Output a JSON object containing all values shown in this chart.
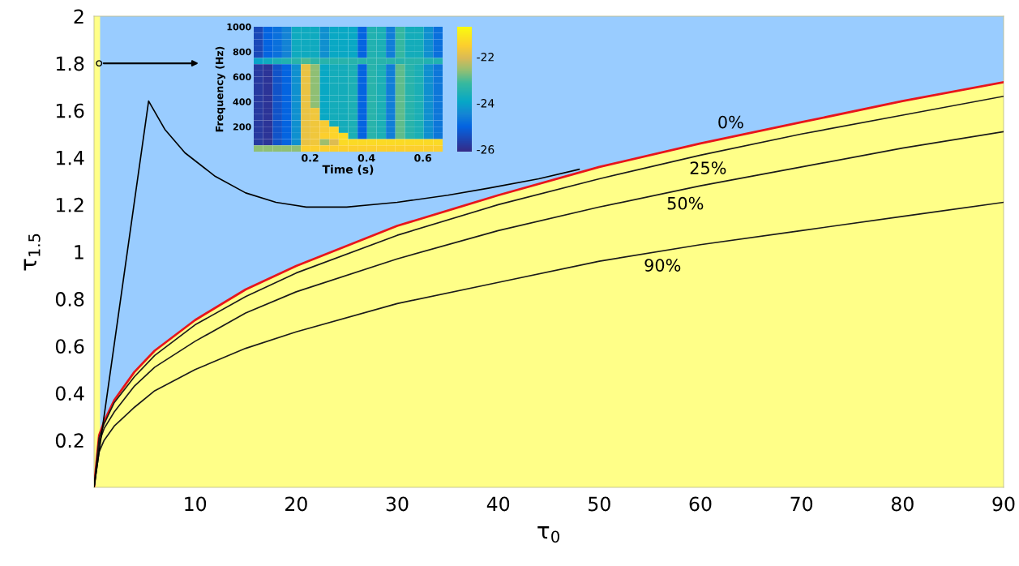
{
  "chart_data": [
    {
      "type": "area",
      "xlabel": "τ$_{0}$",
      "ylabel": "τ$_{1.5}$",
      "xlim": [
        0,
        90
      ],
      "ylim": [
        0,
        2
      ],
      "xticks": [
        10,
        20,
        30,
        40,
        50,
        60,
        70,
        80,
        90
      ],
      "yticks": [
        0.2,
        0.4,
        0.6,
        0.8,
        1,
        1.2,
        1.4,
        1.6,
        1.8,
        2
      ],
      "grid": false,
      "x": [
        0,
        0.5,
        1,
        2,
        4,
        6,
        10,
        15,
        20,
        30,
        40,
        50,
        60,
        70,
        80,
        90
      ],
      "bands": [
        {
          "axis": "x",
          "from": 0,
          "to": 0.6,
          "color": "#ffff88"
        }
      ],
      "series": [
        {
          "type": "area",
          "color": "#99ccff",
          "values": [
            2,
            2,
            2,
            2,
            2,
            2,
            2,
            2,
            2,
            2,
            2,
            2,
            2,
            2,
            2,
            2
          ]
        },
        {
          "type": "line",
          "name": "0%",
          "color": "#e8141b",
          "values": [
            0,
            0.22,
            0.28,
            0.37,
            0.49,
            0.58,
            0.71,
            0.84,
            0.94,
            1.11,
            1.24,
            1.36,
            1.46,
            1.55,
            1.64,
            1.72
          ]
        },
        {
          "type": "line",
          "name": "25%",
          "color": "#1a1a1a",
          "values": [
            0,
            0.21,
            0.27,
            0.36,
            0.47,
            0.56,
            0.69,
            0.81,
            0.91,
            1.07,
            1.2,
            1.31,
            1.41,
            1.5,
            1.58,
            1.66
          ]
        },
        {
          "type": "line",
          "name": "50%",
          "color": "#1a1a1a",
          "values": [
            0,
            0.19,
            0.25,
            0.32,
            0.43,
            0.51,
            0.62,
            0.74,
            0.83,
            0.97,
            1.09,
            1.19,
            1.28,
            1.36,
            1.44,
            1.51
          ]
        },
        {
          "type": "line",
          "name": "90%",
          "color": "#1a1a1a",
          "values": [
            0,
            0.15,
            0.2,
            0.26,
            0.34,
            0.41,
            0.5,
            0.59,
            0.66,
            0.78,
            0.87,
            0.96,
            1.03,
            1.09,
            1.15,
            1.21
          ]
        },
        {
          "type": "line",
          "color": "#000000",
          "x": [
            0,
            5.4,
            7,
            9,
            12,
            15,
            18,
            21,
            25,
            30,
            35,
            39,
            44,
            48
          ],
          "values": [
            0,
            1.64,
            1.52,
            1.42,
            1.32,
            1.25,
            1.21,
            1.19,
            1.19,
            1.21,
            1.24,
            1.27,
            1.31,
            1.35
          ]
        },
        {
          "type": "scatter",
          "color": "#000000",
          "marker": "circle",
          "x": [
            0.5
          ],
          "values": [
            1.8
          ]
        }
      ]
    },
    {
      "type": "heatmap",
      "xlabel": "Time (s)",
      "ylabel": "Frequency (Hz)",
      "xlim": [
        0,
        0.67
      ],
      "ylim": [
        0,
        1000
      ],
      "xticks": [
        0.2,
        0.4,
        0.6
      ],
      "yticks": [
        200,
        400,
        600,
        800,
        1000
      ],
      "clim": [
        -26.1,
        -20.7
      ],
      "cticks": [
        -22,
        -24,
        -26
      ],
      "x": [
        0.017,
        0.05,
        0.084,
        0.117,
        0.151,
        0.184,
        0.218,
        0.251,
        0.285,
        0.318,
        0.352,
        0.385,
        0.419,
        0.452,
        0.486,
        0.519,
        0.553,
        0.586,
        0.62,
        0.653
      ],
      "cells": [
        [
          -25.5,
          -25.0,
          -24.8,
          -24.5,
          -23.8,
          -23.8,
          -23.8,
          -24.3,
          -23.9,
          -23.9,
          -23.9,
          -25.0,
          -23.5,
          -23.6,
          -24.6,
          -23.2,
          -23.7,
          -23.7,
          -24.3,
          -24.8
        ],
        [
          -25.5,
          -25.0,
          -24.8,
          -24.5,
          -23.8,
          -23.8,
          -23.8,
          -24.3,
          -23.9,
          -23.9,
          -23.9,
          -25.0,
          -23.5,
          -23.6,
          -24.6,
          -23.2,
          -23.7,
          -23.7,
          -24.3,
          -24.8
        ],
        [
          -25.5,
          -25.0,
          -24.8,
          -24.5,
          -23.8,
          -23.8,
          -23.8,
          -24.3,
          -23.9,
          -23.9,
          -23.9,
          -25.0,
          -23.5,
          -23.6,
          -24.6,
          -23.2,
          -23.7,
          -23.7,
          -24.3,
          -24.8
        ],
        [
          -25.5,
          -25.0,
          -24.8,
          -24.5,
          -23.8,
          -23.8,
          -23.8,
          -24.3,
          -23.9,
          -23.9,
          -23.9,
          -25.0,
          -23.5,
          -23.6,
          -24.6,
          -23.2,
          -23.7,
          -23.7,
          -24.3,
          -24.8
        ],
        [
          -25.5,
          -25.0,
          -24.8,
          -24.5,
          -23.8,
          -23.8,
          -23.8,
          -24.3,
          -23.9,
          -23.9,
          -23.9,
          -25.0,
          -23.5,
          -23.6,
          -24.6,
          -23.2,
          -23.7,
          -23.7,
          -24.3,
          -24.8
        ],
        [
          -24.0,
          -23.8,
          -23.6,
          -23.5,
          -23.4,
          -23.0,
          -23.3,
          -23.4,
          -23.4,
          -23.4,
          -23.4,
          -23.4,
          -23.4,
          -23.4,
          -23.4,
          -23.4,
          -23.4,
          -23.4,
          -23.5,
          -23.5
        ],
        [
          -25.8,
          -25.9,
          -25.3,
          -25.0,
          -24.3,
          -21.8,
          -22.6,
          -23.9,
          -23.7,
          -23.7,
          -23.6,
          -25.0,
          -23.4,
          -23.6,
          -24.6,
          -22.9,
          -23.4,
          -23.6,
          -24.3,
          -24.7
        ],
        [
          -25.8,
          -25.9,
          -25.3,
          -25.0,
          -24.3,
          -21.8,
          -22.6,
          -23.9,
          -23.7,
          -23.7,
          -23.6,
          -25.0,
          -23.4,
          -23.6,
          -24.6,
          -22.9,
          -23.4,
          -23.6,
          -24.3,
          -24.7
        ],
        [
          -25.8,
          -25.9,
          -25.3,
          -25.0,
          -24.3,
          -21.8,
          -22.6,
          -23.9,
          -23.7,
          -23.7,
          -23.6,
          -25.0,
          -23.4,
          -23.6,
          -24.6,
          -22.9,
          -23.4,
          -23.6,
          -24.3,
          -24.7
        ],
        [
          -25.8,
          -25.9,
          -25.3,
          -25.0,
          -24.3,
          -21.8,
          -22.6,
          -23.9,
          -23.7,
          -23.7,
          -23.6,
          -25.0,
          -23.4,
          -23.6,
          -24.6,
          -22.9,
          -23.4,
          -23.6,
          -24.3,
          -24.7
        ],
        [
          -25.8,
          -25.9,
          -25.3,
          -25.0,
          -24.3,
          -21.8,
          -22.6,
          -23.9,
          -23.7,
          -23.7,
          -23.6,
          -25.0,
          -23.4,
          -23.6,
          -24.6,
          -22.9,
          -23.4,
          -23.6,
          -24.3,
          -24.7
        ],
        [
          -25.8,
          -25.9,
          -25.3,
          -25.0,
          -24.3,
          -21.8,
          -22.6,
          -23.9,
          -23.7,
          -23.7,
          -23.6,
          -25.0,
          -23.4,
          -23.6,
          -24.6,
          -22.9,
          -23.4,
          -23.6,
          -24.3,
          -24.7
        ],
        [
          -25.8,
          -25.9,
          -25.3,
          -25.0,
          -24.3,
          -21.8,
          -22.6,
          -23.9,
          -23.7,
          -23.7,
          -23.6,
          -25.0,
          -23.4,
          -23.6,
          -24.6,
          -22.9,
          -23.4,
          -23.6,
          -24.3,
          -24.7
        ],
        [
          -25.8,
          -25.9,
          -25.3,
          -25.0,
          -24.3,
          -21.8,
          -21.7,
          -23.9,
          -23.7,
          -23.7,
          -23.6,
          -25.0,
          -23.4,
          -23.6,
          -24.6,
          -22.9,
          -23.4,
          -23.6,
          -24.3,
          -24.7
        ],
        [
          -25.8,
          -25.9,
          -25.3,
          -25.0,
          -24.3,
          -21.8,
          -21.7,
          -23.9,
          -23.7,
          -23.7,
          -23.6,
          -25.0,
          -23.4,
          -23.6,
          -24.6,
          -22.9,
          -23.4,
          -23.6,
          -24.3,
          -24.7
        ],
        [
          -25.8,
          -25.9,
          -25.3,
          -25.0,
          -24.3,
          -21.8,
          -21.7,
          -21.6,
          -23.7,
          -23.7,
          -23.6,
          -25.0,
          -23.4,
          -23.6,
          -24.6,
          -22.9,
          -23.4,
          -23.6,
          -24.3,
          -24.7
        ],
        [
          -25.8,
          -25.9,
          -25.3,
          -25.0,
          -24.3,
          -21.8,
          -21.7,
          -21.6,
          -21.4,
          -23.7,
          -23.6,
          -25.0,
          -23.4,
          -23.6,
          -24.6,
          -22.9,
          -23.4,
          -23.6,
          -24.3,
          -24.7
        ],
        [
          -25.8,
          -25.9,
          -25.3,
          -25.0,
          -24.3,
          -21.8,
          -21.7,
          -21.5,
          -21.4,
          -21.3,
          -23.6,
          -25.0,
          -23.4,
          -23.6,
          -24.6,
          -22.9,
          -23.4,
          -23.6,
          -24.3,
          -24.7
        ],
        [
          -25.8,
          -25.9,
          -25.3,
          -25.0,
          -24.3,
          -21.8,
          -21.7,
          -22.5,
          -22.0,
          -21.3,
          -21.3,
          -21.3,
          -21.3,
          -21.3,
          -21.3,
          -21.3,
          -21.3,
          -21.3,
          -21.3,
          -21.3
        ],
        [
          -22.6,
          -22.6,
          -22.6,
          -22.6,
          -22.6,
          -21.5,
          -21.5,
          -21.5,
          -21.5,
          -21.5,
          -21.5,
          -21.5,
          -21.5,
          -21.5,
          -21.5,
          -21.5,
          -21.5,
          -21.5,
          -21.5,
          -21.5
        ]
      ]
    }
  ]
}
